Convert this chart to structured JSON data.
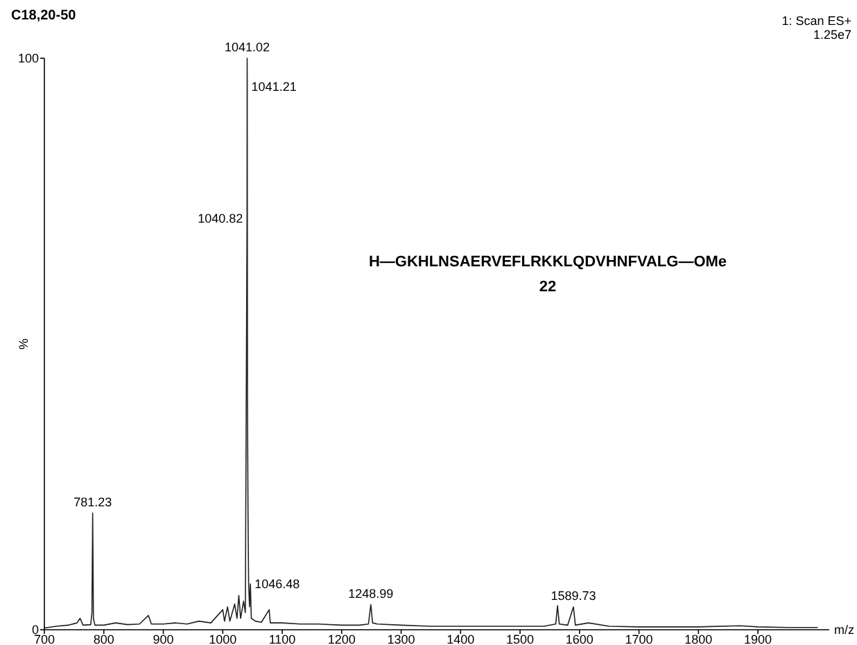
{
  "chart_data": {
    "type": "line",
    "title": "C18,20-50",
    "xlabel": "m/z",
    "ylabel": "%",
    "annotations": [
      "1: Scan ES+",
      "1.25e7",
      "H—GKHLNSAERVEFLRKKLQDVHNFVALG—OMe",
      "22",
      {
        "text": "781.23",
        "x": 781.23,
        "y": 20.4
      },
      {
        "text": "1041.02",
        "x": 1041.02,
        "y": 100
      },
      {
        "text": "1041.21",
        "x": 1041.21,
        "y": 95
      },
      {
        "text": "1040.82",
        "x": 1040.82,
        "y": 72
      },
      {
        "text": "1046.48",
        "x": 1046.48,
        "y": 8
      },
      {
        "text": "1248.99",
        "x": 1248.99,
        "y": 4.4
      },
      {
        "text": "1589.73",
        "x": 1589.73,
        "y": 4
      }
    ],
    "xlim": [
      700,
      2020
    ],
    "xticks": [
      700,
      800,
      900,
      1000,
      1100,
      1200,
      1300,
      1400,
      1500,
      1600,
      1700,
      1800,
      1900
    ],
    "ylim": [
      0,
      100
    ],
    "yticks": [
      0,
      100
    ],
    "grid": false,
    "marker": "none",
    "line_style": "solid",
    "series": [
      {
        "color": "#222222",
        "x": [
          700,
          720,
          740,
          755,
          760,
          765,
          778,
          780,
          781.23,
          782.5,
          785,
          800,
          820,
          840,
          860,
          875,
          880,
          900,
          920,
          940,
          960,
          980,
          1000,
          1003,
          1008,
          1012,
          1020,
          1024,
          1027,
          1030,
          1035,
          1038,
          1040.82,
          1041.02,
          1041.21,
          1041.6,
          1042.5,
          1043.5,
          1045,
          1046.48,
          1048,
          1055,
          1065,
          1078,
          1080,
          1100,
          1130,
          1160,
          1200,
          1230,
          1245,
          1248.99,
          1252,
          1260,
          1300,
          1350,
          1400,
          1450,
          1500,
          1540,
          1560,
          1563,
          1566,
          1580,
          1589.73,
          1593,
          1615,
          1650,
          1700,
          1750,
          1800,
          1870,
          1900,
          1950,
          2000
        ],
        "values": [
          0.3,
          0.6,
          0.8,
          1.2,
          2,
          0.8,
          0.9,
          3,
          20.4,
          2,
          0.8,
          0.8,
          1.2,
          0.9,
          1,
          2.5,
          1,
          1,
          1.2,
          1,
          1.5,
          1.2,
          3.5,
          1.5,
          4,
          1.5,
          4.5,
          2,
          6,
          2,
          5,
          3,
          72,
          100,
          95,
          40,
          20,
          8,
          4,
          8,
          2,
          1.5,
          1.3,
          3.5,
          1.2,
          1.2,
          1,
          1,
          0.8,
          0.8,
          1,
          4.4,
          1.2,
          1,
          0.8,
          0.6,
          0.6,
          0.6,
          0.6,
          0.6,
          1,
          4.2,
          1,
          0.8,
          4,
          0.8,
          1.2,
          0.6,
          0.5,
          0.5,
          0.5,
          0.7,
          0.5,
          0.4,
          0.4
        ]
      }
    ]
  }
}
